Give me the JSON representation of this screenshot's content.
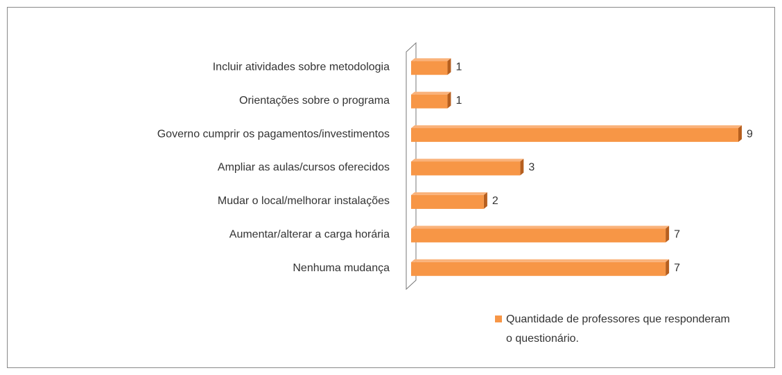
{
  "chart_data": {
    "type": "bar",
    "orientation": "horizontal",
    "categories": [
      "Incluir atividades sobre metodologia",
      "Orientações sobre o programa",
      "Governo cumprir os pagamentos/investimentos",
      "Ampliar as aulas/cursos oferecidos",
      "Mudar o local/melhorar instalações",
      "Aumentar/alterar a carga horária",
      "Nenhuma mudança"
    ],
    "series": [
      {
        "name": "Quantidade de professores que responderam o questionário.",
        "color": "#f79646",
        "values": [
          1,
          1,
          9,
          3,
          2,
          7,
          7
        ]
      }
    ],
    "xlim": [
      0,
      9
    ],
    "legend": "bottom-right"
  }
}
